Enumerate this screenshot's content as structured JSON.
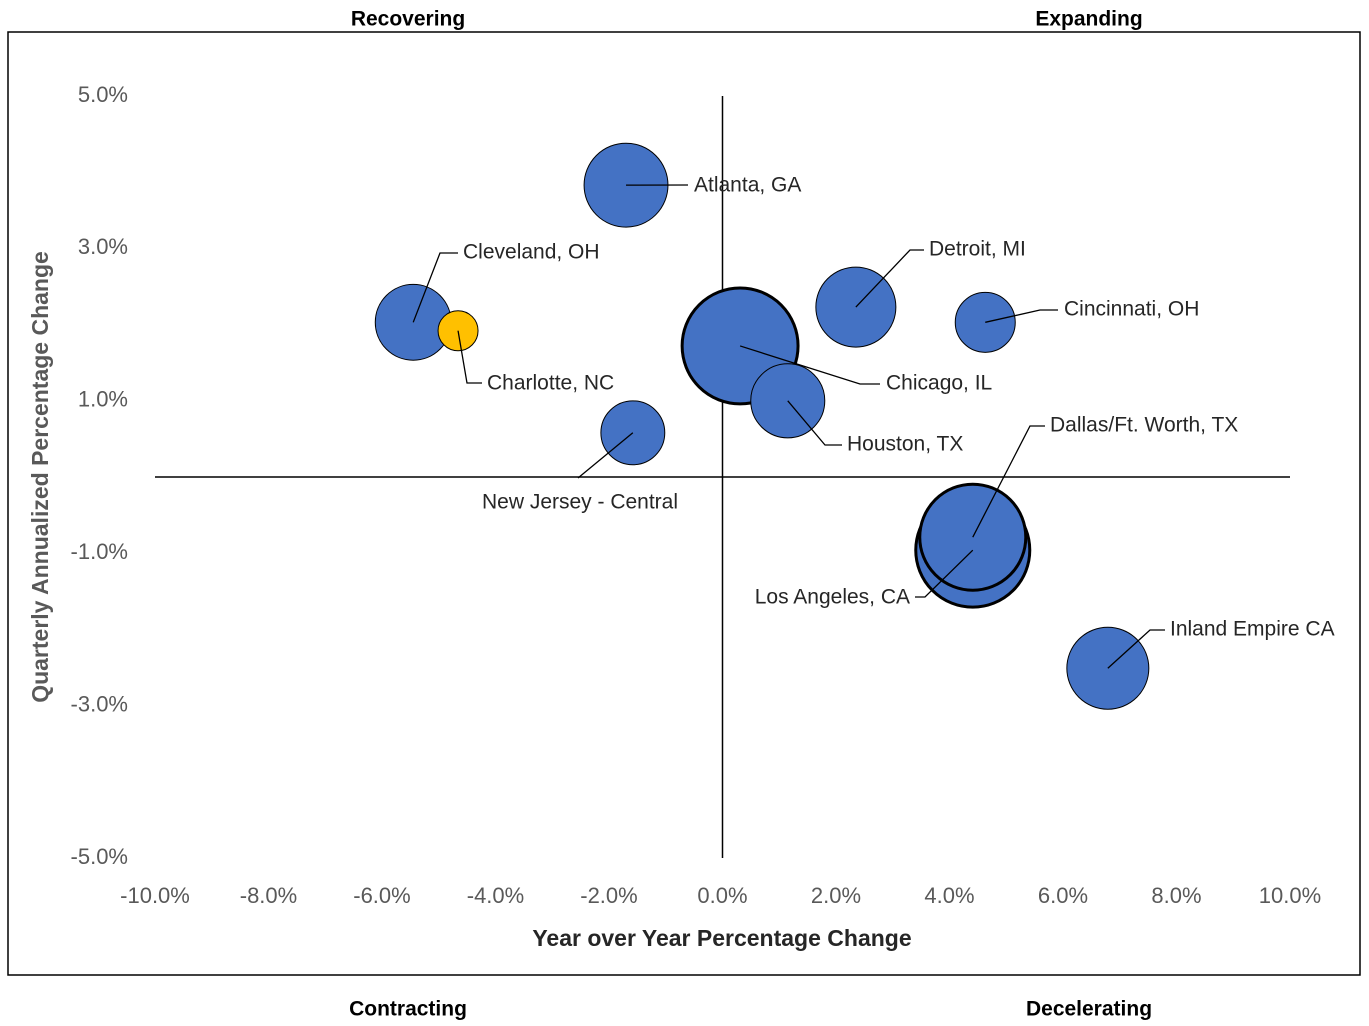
{
  "chart_data": {
    "type": "bubble",
    "annotations": [
      "Recovering",
      "Expanding",
      "Contracting",
      "Decelerating"
    ],
    "xlabel": "Year over Year Percentage Change",
    "ylabel": "Quarterly Annualized Percentage Change",
    "xlim": [
      -10,
      10
    ],
    "ylim": [
      -5,
      5
    ],
    "xticks": [
      {
        "value": -10,
        "label": "-10.0%"
      },
      {
        "value": -8,
        "label": "-8.0%"
      },
      {
        "value": -6,
        "label": "-6.0%"
      },
      {
        "value": -4,
        "label": "-4.0%"
      },
      {
        "value": -2,
        "label": "-2.0%"
      },
      {
        "value": 0,
        "label": "0.0%"
      },
      {
        "value": 2,
        "label": "2.0%"
      },
      {
        "value": 4,
        "label": "4.0%"
      },
      {
        "value": 6,
        "label": "6.0%"
      },
      {
        "value": 8,
        "label": "8.0%"
      },
      {
        "value": 10,
        "label": "10.0%"
      }
    ],
    "yticks": [
      {
        "value": 5,
        "label": "5.0%"
      },
      {
        "value": 3,
        "label": "3.0%"
      },
      {
        "value": 1,
        "label": "1.0%"
      },
      {
        "value": -1,
        "label": "-1.0%"
      },
      {
        "value": -3,
        "label": "-3.0%"
      },
      {
        "value": -5,
        "label": "-5.0%"
      }
    ],
    "points": [
      {
        "name": "Atlanta, GA",
        "x": -1.7,
        "y": 3.83,
        "size": 17.6,
        "color": "#4472c4",
        "stroke_width": 1
      },
      {
        "name": "Cleveland, OH",
        "x": -5.45,
        "y": 2.03,
        "size": 14.4,
        "color": "#4472c4",
        "stroke_width": 1
      },
      {
        "name": "Charlotte, NC",
        "x": -4.66,
        "y": 1.92,
        "size": 4.0,
        "color": "#ffc000",
        "stroke_width": 1
      },
      {
        "name": "Detroit, MI",
        "x": 2.35,
        "y": 2.23,
        "size": 16.0,
        "color": "#4472c4",
        "stroke_width": 1
      },
      {
        "name": "Cincinnati, OH",
        "x": 4.63,
        "y": 2.03,
        "size": 9.0,
        "color": "#4472c4",
        "stroke_width": 1
      },
      {
        "name": "Chicago, IL",
        "x": 0.31,
        "y": 1.72,
        "size": 33.6,
        "color": "#4472c4",
        "stroke_width": 3
      },
      {
        "name": "Houston, TX",
        "x": 1.15,
        "y": 1.0,
        "size": 13.7,
        "color": "#4472c4",
        "stroke_width": 1
      },
      {
        "name": "New Jersey - Central",
        "x": -1.58,
        "y": 0.58,
        "size": 10.2,
        "color": "#4472c4",
        "stroke_width": 1
      },
      {
        "name": "Los Angeles, CA",
        "x": 4.41,
        "y": -0.96,
        "size": 32.5,
        "color": "#4472c4",
        "stroke_width": 3
      },
      {
        "name": "Dallas/Ft. Worth, TX",
        "x": 4.41,
        "y": -0.79,
        "size": 28.1,
        "color": "#4472c4",
        "stroke_width": 3
      },
      {
        "name": "Inland Empire CA",
        "x": 6.79,
        "y": -2.51,
        "size": 16.8,
        "color": "#4472c4",
        "stroke_width": 1
      }
    ]
  }
}
